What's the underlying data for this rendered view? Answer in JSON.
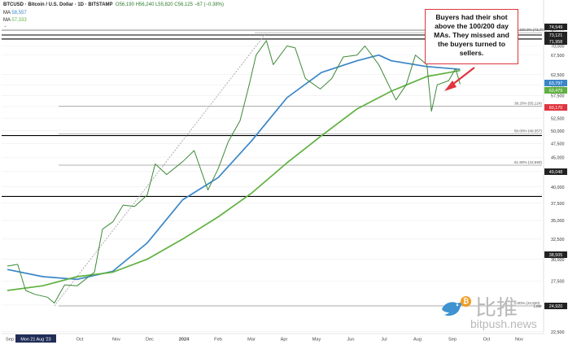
{
  "header": {
    "symbol": "BTCUSD · Bitcoin / U.S. Dollar · 1D · BITSTAMP",
    "ohlc": "O56,190 H56,240 L55,820 C56,125 −67 (−0.38%)",
    "ma1_label": "MA",
    "ma1_value": "58,557",
    "ma2_label": "MA",
    "ma2_value": "57,333"
  },
  "annotation": {
    "text": "Buyers had their shot above the 100/200 day MAs. They missed and the buyers turned to sellers."
  },
  "watermark": {
    "cn": "比推",
    "en": "bitpush.news"
  },
  "colors": {
    "price": "#3d8a37",
    "ma100": "#3a86c8",
    "ma200": "#5fb140",
    "level": "#000000",
    "fib": "#999999",
    "trend": "#999999",
    "callout_border": "#e0343f",
    "arrow": "#e0343f"
  },
  "chart_data": {
    "type": "line",
    "x_axis": {
      "ticks": [
        "Sep",
        "Mon 21 Aug '23",
        "Oct",
        "Nov",
        "Dec",
        "2024",
        "Feb",
        "Mar",
        "Apr",
        "May",
        "Jun",
        "Jul",
        "Aug",
        "Sep",
        "Oct",
        "Nov"
      ]
    },
    "y_axis": {
      "ylim": [
        23000,
        77000
      ],
      "scale": "log",
      "ticks": [
        75000,
        70000,
        67500,
        62500,
        60000,
        57500,
        55000,
        52500,
        50000,
        47500,
        45000,
        42500,
        40000,
        37500,
        35000,
        32500,
        30000,
        27500,
        25000,
        22500
      ],
      "tick_labels": [
        "75,000",
        "70,000",
        "67,500",
        "62,500",
        "60,000",
        "57,500",
        "55,000",
        "52,500",
        "50,000",
        "47,500",
        "45,000",
        "42,500",
        "40,000",
        "37,500",
        "35,000",
        "32,500",
        "30,000",
        "27,500",
        "25,000",
        "22,500"
      ]
    },
    "price_badges": [
      {
        "label": "74,549",
        "value": 74549,
        "color": "#222222"
      },
      {
        "label": "73,121",
        "value": 73121,
        "color": "#222222"
      },
      {
        "label": "71,958",
        "value": 71958,
        "color": "#222222"
      },
      {
        "label": "63,797",
        "value": 63797,
        "color": "#3a86c8"
      },
      {
        "label": "63,479",
        "value": 63479,
        "color": "#5fb140"
      },
      {
        "label": "60,170",
        "value": 60170,
        "color": "#e0343f"
      },
      {
        "label": "49,048",
        "value": 49048,
        "color": "#222222"
      },
      {
        "label": "38,505",
        "value": 38505,
        "color": "#222222"
      },
      {
        "label": "24,920",
        "value": 24920,
        "color": "#222222"
      }
    ],
    "horizontal_levels": [
      {
        "value": 73121,
        "label": ""
      },
      {
        "value": 71958,
        "label": ""
      },
      {
        "value": 49048,
        "label": ""
      },
      {
        "value": 38505,
        "label": ""
      }
    ],
    "fib_levels": [
      {
        "label": "100.0% (73,794) High",
        "value": 73794
      },
      {
        "label": "38.20% (55,124)",
        "value": 55124
      },
      {
        "label": "50.00% (49,357)",
        "value": 49357
      },
      {
        "label": "61.80% (43,590)",
        "value": 43590
      },
      {
        "label": "0.00% (24,920)",
        "value": 24920
      }
    ],
    "low_label": "Low",
    "series": [
      {
        "name": "BTCUSD",
        "x": [
          "2023-08-01",
          "2023-08-10",
          "2023-08-17",
          "2023-08-25",
          "2023-09-05",
          "2023-09-11",
          "2023-09-20",
          "2023-10-01",
          "2023-10-16",
          "2023-10-23",
          "2023-11-01",
          "2023-11-10",
          "2023-11-20",
          "2023-12-01",
          "2023-12-08",
          "2023-12-18",
          "2024-01-01",
          "2024-01-11",
          "2024-01-23",
          "2024-02-01",
          "2024-02-10",
          "2024-02-20",
          "2024-02-28",
          "2024-03-05",
          "2024-03-14",
          "2024-03-20",
          "2024-04-01",
          "2024-04-08",
          "2024-04-17",
          "2024-04-30",
          "2024-05-10",
          "2024-05-20",
          "2024-06-01",
          "2024-06-08",
          "2024-06-20",
          "2024-07-05",
          "2024-07-14",
          "2024-07-22",
          "2024-08-01",
          "2024-08-05",
          "2024-08-10",
          "2024-08-20",
          "2024-08-26",
          "2024-08-30"
        ],
        "values": [
          29200,
          29400,
          26500,
          26100,
          25800,
          25200,
          27100,
          27000,
          28500,
          33800,
          34800,
          37200,
          37000,
          38700,
          43800,
          42000,
          44200,
          46200,
          39500,
          43000,
          48000,
          52000,
          60000,
          67500,
          71500,
          65000,
          70000,
          69500,
          61500,
          59000,
          61500,
          67000,
          67500,
          70000,
          65000,
          56500,
          60000,
          67500,
          65000,
          54000,
          60000,
          61000,
          64000,
          60170
        ]
      },
      {
        "name": "",
        "x": [
          "2023-08-01",
          "2023-09-01",
          "2023-10-01",
          "2023-11-01",
          "2023-12-01",
          "2024-01-01",
          "2024-02-01",
          "2024-03-01",
          "2024-04-01",
          "2024-05-01",
          "2024-06-01",
          "2024-06-20",
          "2024-07-01",
          "2024-08-01",
          "2024-08-30"
        ],
        "values": [
          28800,
          28000,
          27700,
          28600,
          32000,
          38000,
          41500,
          48000,
          57000,
          63000,
          66000,
          67500,
          66000,
          64500,
          63800
        ]
      },
      {
        "name": "",
        "x": [
          "2023-08-01",
          "2023-09-01",
          "2023-10-01",
          "2023-11-01",
          "2023-12-01",
          "2024-01-01",
          "2024-02-01",
          "2024-03-01",
          "2024-04-01",
          "2024-05-01",
          "2024-06-01",
          "2024-07-01",
          "2024-08-01",
          "2024-08-30"
        ],
        "values": [
          26500,
          27000,
          28000,
          28500,
          30000,
          32500,
          35500,
          39000,
          44000,
          49000,
          54500,
          58500,
          62000,
          63479
        ]
      }
    ],
    "trendline": {
      "from": {
        "x": "2023-09-11",
        "y": 24920
      },
      "to": {
        "x": "2024-03-14",
        "y": 73794
      }
    }
  }
}
